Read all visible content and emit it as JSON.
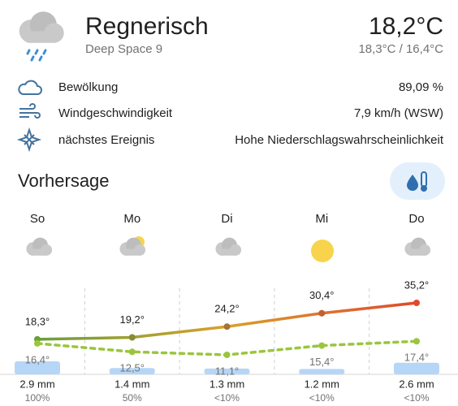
{
  "header": {
    "title": "Regnerisch",
    "subtitle": "Deep Space 9",
    "temperature": "18,2°C",
    "temperature_range": "18,3°C / 16,4°C"
  },
  "attributes": [
    {
      "label": "Bewölkung",
      "value": "89,09 %"
    },
    {
      "label": "Windgeschwindigkeit",
      "value": "7,9 km/h (WSW)"
    },
    {
      "label": "nächstes Ereignis",
      "value": "Hohe Niederschlagswahrscheinlichkeit"
    }
  ],
  "forecast_title": "Vorhersage",
  "chart_data": {
    "type": "line",
    "categories": [
      "So",
      "Mo",
      "Di",
      "Mi",
      "Do"
    ],
    "series": [
      {
        "color": "#e0492f",
        "values": [
          18.3,
          19.2,
          24.2,
          30.4,
          35.2
        ],
        "value_labels": [
          "18,3°",
          "19,2°",
          "24,2°",
          "30,4°",
          "35,2°"
        ]
      },
      {
        "color": "#9bc53d",
        "dashed": true,
        "values": [
          16.4,
          12.5,
          11.1,
          15.4,
          17.4
        ],
        "value_labels": [
          "16,4°",
          "12,5°",
          "11,1°",
          "15,4°",
          "17,4°"
        ]
      }
    ],
    "precipitation": {
      "color": "#b6d6f7",
      "values": [
        2.9,
        1.4,
        1.3,
        1.2,
        2.6
      ],
      "value_labels": [
        "2.9 mm",
        "1.4 mm",
        "1.3 mm",
        "1.2 mm",
        "2.6 mm"
      ]
    },
    "precipitation_probability": [
      "100%",
      "50%",
      "<10%",
      "<10%",
      "<10%"
    ]
  }
}
